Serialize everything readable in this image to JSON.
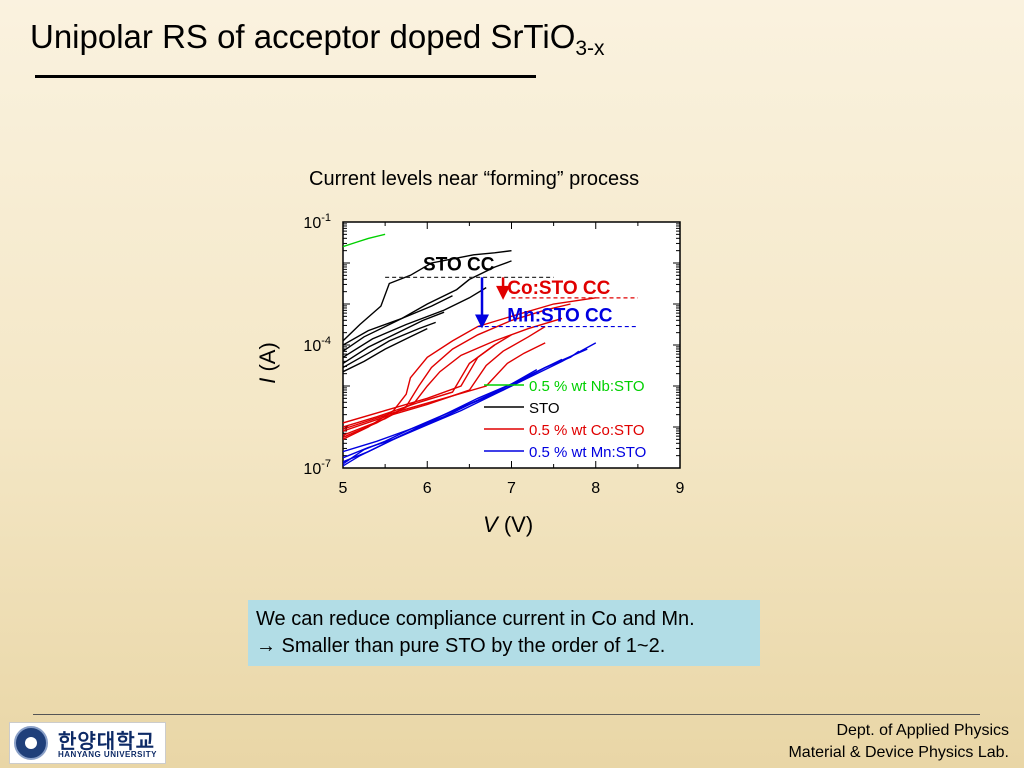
{
  "slide": {
    "title_main": "Unipolar RS of acceptor doped SrTiO",
    "title_sub": "3-x",
    "note_line1": "We can reduce compliance current in Co and Mn.",
    "note_line2": "→ Smaller than pure STO by the order of 1~2.",
    "footer_dept": "Dept. of Applied Physics",
    "footer_lab": "Material & Device Physics Lab.",
    "logo_korean": "한양대학교",
    "logo_english": "HANYANG UNIVERSITY"
  },
  "chart_data": {
    "type": "line",
    "title": "Current levels near “forming” process",
    "xlabel_var": "V",
    "xlabel_unit": "(V)",
    "ylabel_var": "I",
    "ylabel_unit": "(A)",
    "xlim": [
      5,
      9
    ],
    "ylim_log10": [
      -7,
      -1
    ],
    "xscale": "linear",
    "yscale": "log",
    "x_ticks": [
      5,
      6,
      7,
      8,
      9
    ],
    "x_tick_labels": [
      "5",
      "6",
      "7",
      "8",
      "9"
    ],
    "y_ticks_log10": [
      -7,
      -4,
      -1
    ],
    "y_tick_base": "10",
    "y_tick_exponents": [
      "-7",
      "-4",
      "-1"
    ],
    "legend_position": "bottom-right",
    "series": [
      {
        "name": "0.5 % wt Nb:STO",
        "color": "#00d000",
        "curves": [
          {
            "x": [
              5.0,
              5.15,
              5.3,
              5.5
            ],
            "y_log10": [
              -1.6,
              -1.5,
              -1.4,
              -1.3
            ]
          }
        ]
      },
      {
        "name": "STO",
        "color": "#000000",
        "curves": [
          {
            "x": [
              5.0,
              5.2,
              5.45,
              5.55,
              5.8,
              6.05,
              6.3,
              6.55,
              6.8,
              7.0
            ],
            "y_log10": [
              -3.9,
              -3.5,
              -3.05,
              -2.5,
              -2.3,
              -2.0,
              -1.9,
              -1.8,
              -1.75,
              -1.7
            ]
          },
          {
            "x": [
              5.0,
              5.3,
              5.7,
              6.0,
              6.35,
              6.5,
              6.8,
              7.0
            ],
            "y_log10": [
              -4.0,
              -3.65,
              -3.35,
              -3.0,
              -2.65,
              -2.4,
              -2.1,
              -1.95
            ]
          },
          {
            "x": [
              5.0,
              5.35,
              5.75,
              6.2,
              6.5,
              6.7
            ],
            "y_log10": [
              -4.3,
              -3.85,
              -3.5,
              -3.15,
              -2.85,
              -2.6
            ]
          },
          {
            "x": [
              5.0,
              5.25,
              5.7,
              6.05,
              6.3
            ],
            "y_log10": [
              -4.15,
              -3.8,
              -3.35,
              -3.05,
              -2.8
            ]
          },
          {
            "x": [
              5.0,
              5.3,
              5.65,
              5.95,
              6.2
            ],
            "y_log10": [
              -4.45,
              -4.05,
              -3.7,
              -3.4,
              -3.2
            ]
          },
          {
            "x": [
              5.0,
              5.3,
              5.55,
              5.9,
              6.1
            ],
            "y_log10": [
              -4.55,
              -4.2,
              -3.9,
              -3.6,
              -3.45
            ]
          },
          {
            "x": [
              5.0,
              5.25,
              5.5,
              5.8,
              6.0
            ],
            "y_log10": [
              -4.65,
              -4.4,
              -4.1,
              -3.8,
              -3.6
            ]
          }
        ]
      },
      {
        "name": "0.5 % wt Co:STO",
        "color": "#e00000",
        "curves": [
          {
            "x": [
              5.0,
              5.3,
              5.6,
              5.75,
              5.8,
              6.0,
              6.3,
              6.6,
              7.0,
              7.5,
              8.0
            ],
            "y_log10": [
              -6.3,
              -6.0,
              -5.6,
              -5.2,
              -4.8,
              -4.3,
              -3.9,
              -3.55,
              -3.3,
              -3.0,
              -2.85
            ]
          },
          {
            "x": [
              5.0,
              5.4,
              5.75,
              5.9,
              6.05,
              6.3,
              6.6,
              7.0,
              7.4,
              7.7
            ],
            "y_log10": [
              -6.25,
              -5.9,
              -5.5,
              -5.0,
              -4.55,
              -4.1,
              -3.75,
              -3.4,
              -3.15,
              -3.0
            ]
          },
          {
            "x": [
              5.0,
              5.5,
              5.85,
              6.0,
              6.15,
              6.4,
              6.8,
              7.2,
              7.6
            ],
            "y_log10": [
              -6.2,
              -5.8,
              -5.4,
              -5.0,
              -4.65,
              -4.25,
              -3.9,
              -3.6,
              -3.35
            ]
          },
          {
            "x": [
              5.0,
              5.5,
              6.0,
              6.5,
              6.7,
              6.9,
              7.2,
              7.4
            ],
            "y_log10": [
              -6.1,
              -5.75,
              -5.45,
              -5.1,
              -4.5,
              -4.15,
              -3.8,
              -3.55
            ]
          },
          {
            "x": [
              5.0,
              5.4,
              5.9,
              6.3,
              6.5,
              6.8,
              7.0
            ],
            "y_log10": [
              -6.0,
              -5.75,
              -5.4,
              -5.15,
              -4.45,
              -4.0,
              -3.75
            ]
          },
          {
            "x": [
              5.0,
              5.6,
              6.2,
              6.7,
              6.95,
              7.15,
              7.4
            ],
            "y_log10": [
              -6.05,
              -5.65,
              -5.3,
              -5.0,
              -4.45,
              -4.2,
              -3.95
            ]
          },
          {
            "x": [
              5.0,
              5.5,
              6.0,
              6.4,
              6.6,
              6.8
            ],
            "y_log10": [
              -5.9,
              -5.6,
              -5.3,
              -5.0,
              -4.3,
              -4.0
            ]
          }
        ]
      },
      {
        "name": "0.5 % wt Mn:STO",
        "color": "#0000e0",
        "curves": [
          {
            "x": [
              5.0,
              5.2,
              5.4,
              5.6,
              5.8,
              6.0,
              6.3,
              6.6,
              7.0,
              7.4,
              7.9
            ],
            "y_log10": [
              -6.95,
              -6.7,
              -6.5,
              -6.3,
              -6.1,
              -5.9,
              -5.6,
              -5.3,
              -4.95,
              -4.55,
              -4.1
            ]
          },
          {
            "x": [
              5.0,
              5.3,
              5.6,
              6.0,
              6.4,
              6.8,
              7.2,
              7.6,
              8.0
            ],
            "y_log10": [
              -6.75,
              -6.5,
              -6.3,
              -5.95,
              -5.6,
              -5.2,
              -4.8,
              -4.4,
              -3.95
            ]
          },
          {
            "x": [
              5.0,
              5.25,
              5.5,
              5.8,
              6.2,
              6.6,
              7.0,
              7.3
            ],
            "y_log10": [
              -6.9,
              -6.55,
              -6.35,
              -6.05,
              -5.75,
              -5.35,
              -4.95,
              -4.6
            ]
          },
          {
            "x": [
              5.0,
              5.4,
              5.8,
              6.2,
              6.6,
              7.0,
              7.4,
              7.7,
              7.8
            ],
            "y_log10": [
              -6.6,
              -6.35,
              -6.05,
              -5.7,
              -5.35,
              -5.0,
              -4.55,
              -4.3,
              -4.15
            ]
          },
          {
            "x": [
              5.0,
              5.3,
              5.7,
              6.1,
              6.5,
              6.9,
              7.2,
              7.6
            ],
            "y_log10": [
              -6.85,
              -6.6,
              -6.2,
              -5.85,
              -5.45,
              -5.1,
              -4.75,
              -4.35
            ]
          }
        ]
      }
    ],
    "annotations": [
      {
        "text": "STO CC",
        "color": "#000000",
        "level_log10": -2.35,
        "x_start": 5.5,
        "x_end": 7.5
      },
      {
        "text": "Co:STO CC",
        "color": "#e00000",
        "level_log10": -2.85,
        "x_start": 7.0,
        "x_end": 8.5
      },
      {
        "text": "Mn:STO CC",
        "color": "#0000e0",
        "level_log10": -3.55,
        "x_start": 6.6,
        "x_end": 8.5
      }
    ],
    "arrows": [
      {
        "color": "#0000e0",
        "x": 6.65,
        "from_log10": -2.35,
        "to_log10": -3.55
      },
      {
        "color": "#e00000",
        "x": 6.9,
        "from_log10": -2.35,
        "to_log10": -2.85
      }
    ]
  }
}
